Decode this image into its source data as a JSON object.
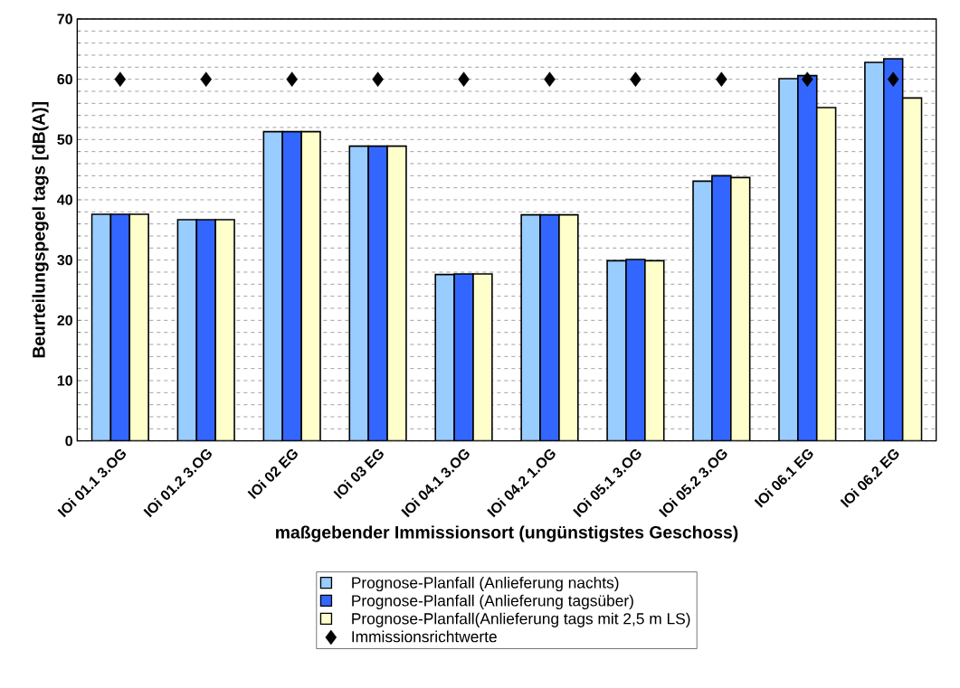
{
  "chart_data": {
    "type": "bar",
    "xlabel": "maßgebender Immissionsort (ungünstigstes Geschoss)",
    "ylabel": "Beurteilungspegel tags [dB(A)]",
    "categories": [
      "IOi 01.1 3.OG",
      "IOi 01.2 3.OG",
      "IOi 02 EG",
      "IOi 03 EG",
      "IOi 04.1 3.OG",
      "IOi 04.2 1.OG",
      "IOi 05.1 3.OG",
      "IOi 05.2 3.OG",
      "IOi 06.1 EG",
      "IOi 06.2 EG"
    ],
    "series": [
      {
        "name": "Prognose-Planfall (Anlieferung nachts)",
        "color": "#99ccff",
        "values": [
          37.6,
          36.7,
          51.3,
          48.9,
          27.6,
          37.5,
          29.9,
          43.1,
          60.1,
          62.8
        ]
      },
      {
        "name": "Prognose-Planfall (Anlieferung tagsüber)",
        "color": "#3366ff",
        "values": [
          37.6,
          36.7,
          51.3,
          48.9,
          27.7,
          37.5,
          30.1,
          44.0,
          60.6,
          63.4
        ]
      },
      {
        "name": "Prognose-Planfall(Anlieferung tags mit 2,5 m LS)",
        "color": "#ffffcc",
        "values": [
          37.6,
          36.7,
          51.3,
          48.9,
          27.7,
          37.5,
          29.9,
          43.7,
          55.3,
          56.9
        ]
      },
      {
        "name": "Immissionsrichtwerte",
        "type": "scatter",
        "marker": "diamond",
        "color": "#000000",
        "x": [
          "IOi 01.1 3.OG",
          "IOi 01.2 3.OG",
          "IOi 02 EG",
          "IOi 03 EG",
          "IOi 04.1 3.OG",
          "IOi 04.2 1.OG",
          "IOi 05.1 3.OG",
          "IOi 05.2 3.OG",
          "IOi 06.1 EG",
          "IOi 06.2 EG"
        ],
        "values": [
          60,
          60,
          60,
          60,
          60,
          60,
          60,
          60,
          60,
          60
        ]
      }
    ],
    "ylim": [
      0,
      70
    ],
    "yticks": [
      0,
      10,
      20,
      30,
      40,
      50,
      60,
      70
    ],
    "grid": "y",
    "legend": "bottom"
  }
}
